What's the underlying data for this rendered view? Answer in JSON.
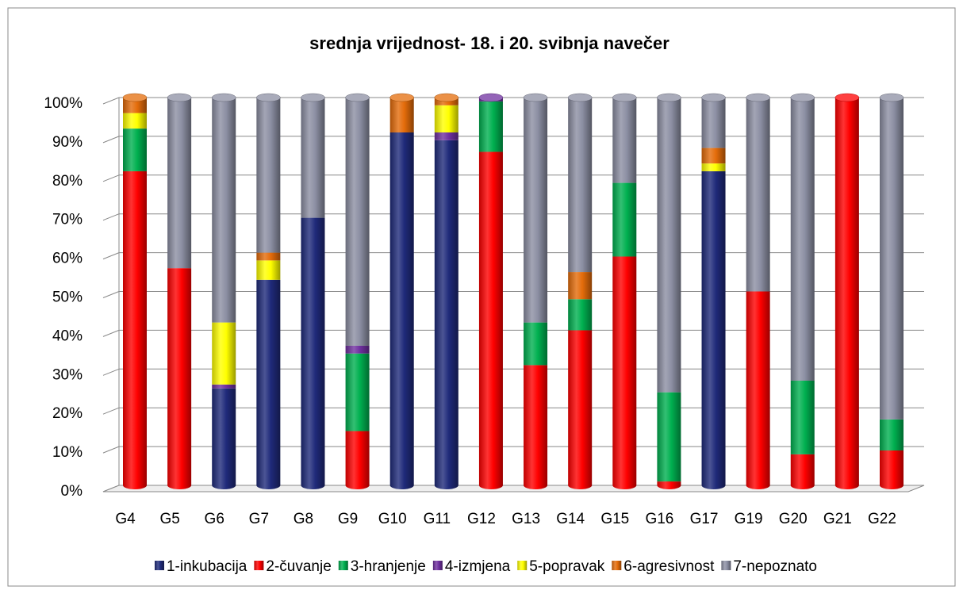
{
  "chart_data": {
    "type": "bar",
    "stacked": true,
    "title": "srednja vrijednost- 18. i 20. svibnja navečer",
    "categories": [
      "G4",
      "G5",
      "G6",
      "G7",
      "G8",
      "G9",
      "G10",
      "G11",
      "G12",
      "G13",
      "G14",
      "G15",
      "G16",
      "G17",
      "G19",
      "G20",
      "G21",
      "G22"
    ],
    "series": [
      {
        "name": "1-inkubacija",
        "color": "#1f2a7a",
        "values": [
          0,
          0,
          25,
          53,
          69,
          0,
          91,
          89,
          0,
          0,
          0,
          0,
          0,
          81,
          0,
          0,
          0,
          0
        ]
      },
      {
        "name": "2-čuvanje",
        "color": "#ff0000",
        "values": [
          81,
          56,
          0,
          0,
          0,
          14,
          0,
          0,
          86,
          31,
          40,
          59,
          1,
          0,
          50,
          8,
          100,
          9
        ]
      },
      {
        "name": "3-hranjenje",
        "color": "#00b050",
        "values": [
          11,
          0,
          0,
          0,
          0,
          20,
          0,
          0,
          13,
          11,
          8,
          19,
          23,
          0,
          0,
          19,
          0,
          8
        ]
      },
      {
        "name": "4-izmjena",
        "color": "#7030a0",
        "values": [
          0,
          0,
          1,
          0,
          0,
          2,
          0,
          2,
          1,
          0,
          0,
          0,
          0,
          0,
          0,
          0,
          0,
          0
        ]
      },
      {
        "name": "5-popravak",
        "color": "#ffff00",
        "values": [
          4,
          0,
          16,
          5,
          0,
          0,
          0,
          7,
          0,
          0,
          0,
          0,
          0,
          2,
          0,
          0,
          0,
          0
        ]
      },
      {
        "name": "6-agresivnost",
        "color": "#e46c0a",
        "values": [
          4,
          0,
          0,
          2,
          0,
          0,
          9,
          2,
          0,
          0,
          7,
          0,
          0,
          4,
          0,
          0,
          0,
          0
        ]
      },
      {
        "name": "7-nepoznato",
        "color": "#8c8fa3",
        "values": [
          0,
          44,
          58,
          40,
          31,
          64,
          0,
          0,
          0,
          58,
          45,
          22,
          76,
          13,
          50,
          73,
          0,
          83
        ]
      }
    ],
    "ylim": [
      0,
      100
    ],
    "yticks": [
      {
        "value": 0,
        "label": "0%"
      },
      {
        "value": 10,
        "label": "10%"
      },
      {
        "value": 20,
        "label": "20%"
      },
      {
        "value": 30,
        "label": "30%"
      },
      {
        "value": 40,
        "label": "40%"
      },
      {
        "value": 50,
        "label": "50%"
      },
      {
        "value": 60,
        "label": "60%"
      },
      {
        "value": 70,
        "label": "70%"
      },
      {
        "value": 80,
        "label": "80%"
      },
      {
        "value": 90,
        "label": "90%"
      },
      {
        "value": 100,
        "label": "100%"
      }
    ],
    "grid": true,
    "legend": "bottom"
  }
}
